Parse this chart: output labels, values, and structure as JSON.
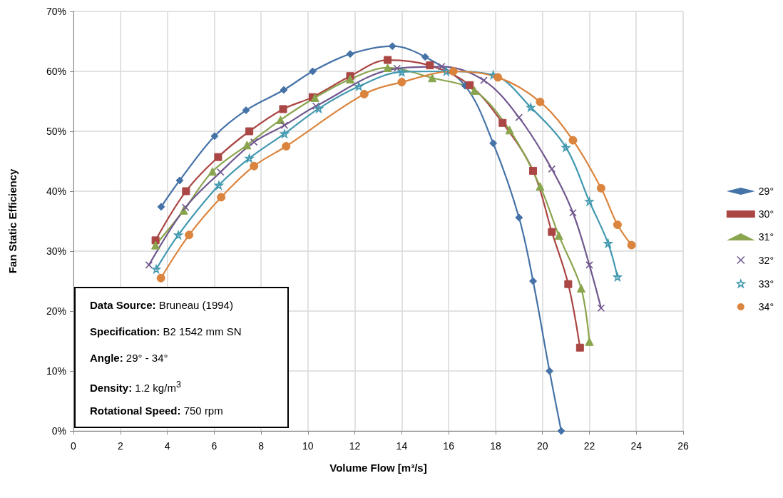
{
  "chart_data": {
    "type": "line",
    "xlabel": "Volume Flow [m³/s]",
    "ylabel": "Fan Static Efficiency",
    "xlim": [
      0,
      26
    ],
    "xticks": [
      0,
      2,
      4,
      6,
      8,
      10,
      12,
      14,
      16,
      18,
      20,
      22,
      24,
      26
    ],
    "ylim": [
      0,
      70
    ],
    "yticks": [
      {
        "value": 0,
        "label": "0%"
      },
      {
        "value": 10,
        "label": "10%"
      },
      {
        "value": 20,
        "label": "20%"
      },
      {
        "value": 30,
        "label": "30%"
      },
      {
        "value": 40,
        "label": "40%"
      },
      {
        "value": 50,
        "label": "50%"
      },
      {
        "value": 60,
        "label": "60%"
      },
      {
        "value": 70,
        "label": "70%"
      }
    ],
    "grid": true,
    "legend": "right",
    "line_style": "solid",
    "series": [
      {
        "name": "29°",
        "color": "#4572a7",
        "marker": "diamond",
        "x": [
          3.74,
          4.53,
          6.02,
          7.36,
          8.97,
          10.2,
          11.8,
          13.6,
          15.0,
          16.7,
          17.9,
          19.0,
          19.6,
          20.3,
          20.8
        ],
        "values": [
          37.4,
          41.8,
          49.2,
          53.5,
          56.9,
          60.0,
          62.9,
          64.2,
          62.4,
          57.6,
          48.0,
          35.6,
          25.0,
          10.0,
          0
        ]
      },
      {
        "name": "30°",
        "color": "#aa4643",
        "marker": "square",
        "x": [
          3.5,
          4.8,
          6.17,
          7.5,
          8.94,
          10.2,
          11.8,
          13.4,
          15.2,
          16.9,
          18.3,
          19.6,
          20.4,
          21.1,
          21.6
        ],
        "values": [
          31.8,
          40.0,
          45.7,
          50.0,
          53.7,
          55.7,
          59.2,
          61.9,
          61.0,
          57.7,
          51.4,
          43.4,
          33.2,
          24.5,
          13.9
        ]
      },
      {
        "name": "31°",
        "color": "#89a54e",
        "marker": "triangle",
        "x": [
          3.5,
          4.7,
          5.93,
          7.4,
          8.83,
          10.3,
          11.8,
          13.4,
          15.3,
          17.1,
          18.6,
          19.9,
          20.7,
          21.65,
          22.0
        ],
        "values": [
          31.0,
          36.8,
          43.3,
          47.7,
          51.9,
          55.6,
          58.7,
          60.6,
          58.9,
          56.8,
          50.2,
          40.8,
          32.6,
          23.8,
          14.9
        ]
      },
      {
        "name": "32°",
        "color": "#71588f",
        "marker": "cross",
        "x": [
          3.22,
          4.78,
          6.27,
          7.7,
          9.0,
          10.34,
          13.8,
          15.7,
          17.5,
          19.0,
          20.4,
          21.3,
          22.0,
          22.5
        ],
        "values": [
          27.7,
          37.3,
          43.2,
          48.2,
          51.0,
          54.2,
          60.5,
          60.8,
          58.5,
          52.3,
          43.7,
          36.4,
          27.7,
          20.5
        ]
      },
      {
        "name": "33°",
        "color": "#4198af",
        "marker": "star",
        "x": [
          3.53,
          4.47,
          6.2,
          7.5,
          9.0,
          10.46,
          12.17,
          14.0,
          15.9,
          17.9,
          19.5,
          21.0,
          22.0,
          22.8,
          23.2
        ],
        "values": [
          27.0,
          32.7,
          41.0,
          45.5,
          49.6,
          53.8,
          57.5,
          59.9,
          60.0,
          59.4,
          54.0,
          47.3,
          38.3,
          31.3,
          25.7
        ]
      },
      {
        "name": "34°",
        "color": "#db843d",
        "marker": "circle",
        "x": [
          3.73,
          4.93,
          6.3,
          7.7,
          9.07,
          12.4,
          14.0,
          16.2,
          18.1,
          19.9,
          21.3,
          22.5,
          23.2,
          23.8
        ],
        "values": [
          25.5,
          32.7,
          39.0,
          44.2,
          47.5,
          56.2,
          58.2,
          60.0,
          59.0,
          54.9,
          48.5,
          40.5,
          34.4,
          31.0
        ]
      }
    ],
    "annotations": [
      "Data Source: Bruneau (1994)",
      "Specification: B2 1542 mm SN",
      "Angle: 29° - 34°",
      "Density: 1.2 kg/m$^{3}$",
      "Rotational Speed: 750 rpm"
    ]
  }
}
